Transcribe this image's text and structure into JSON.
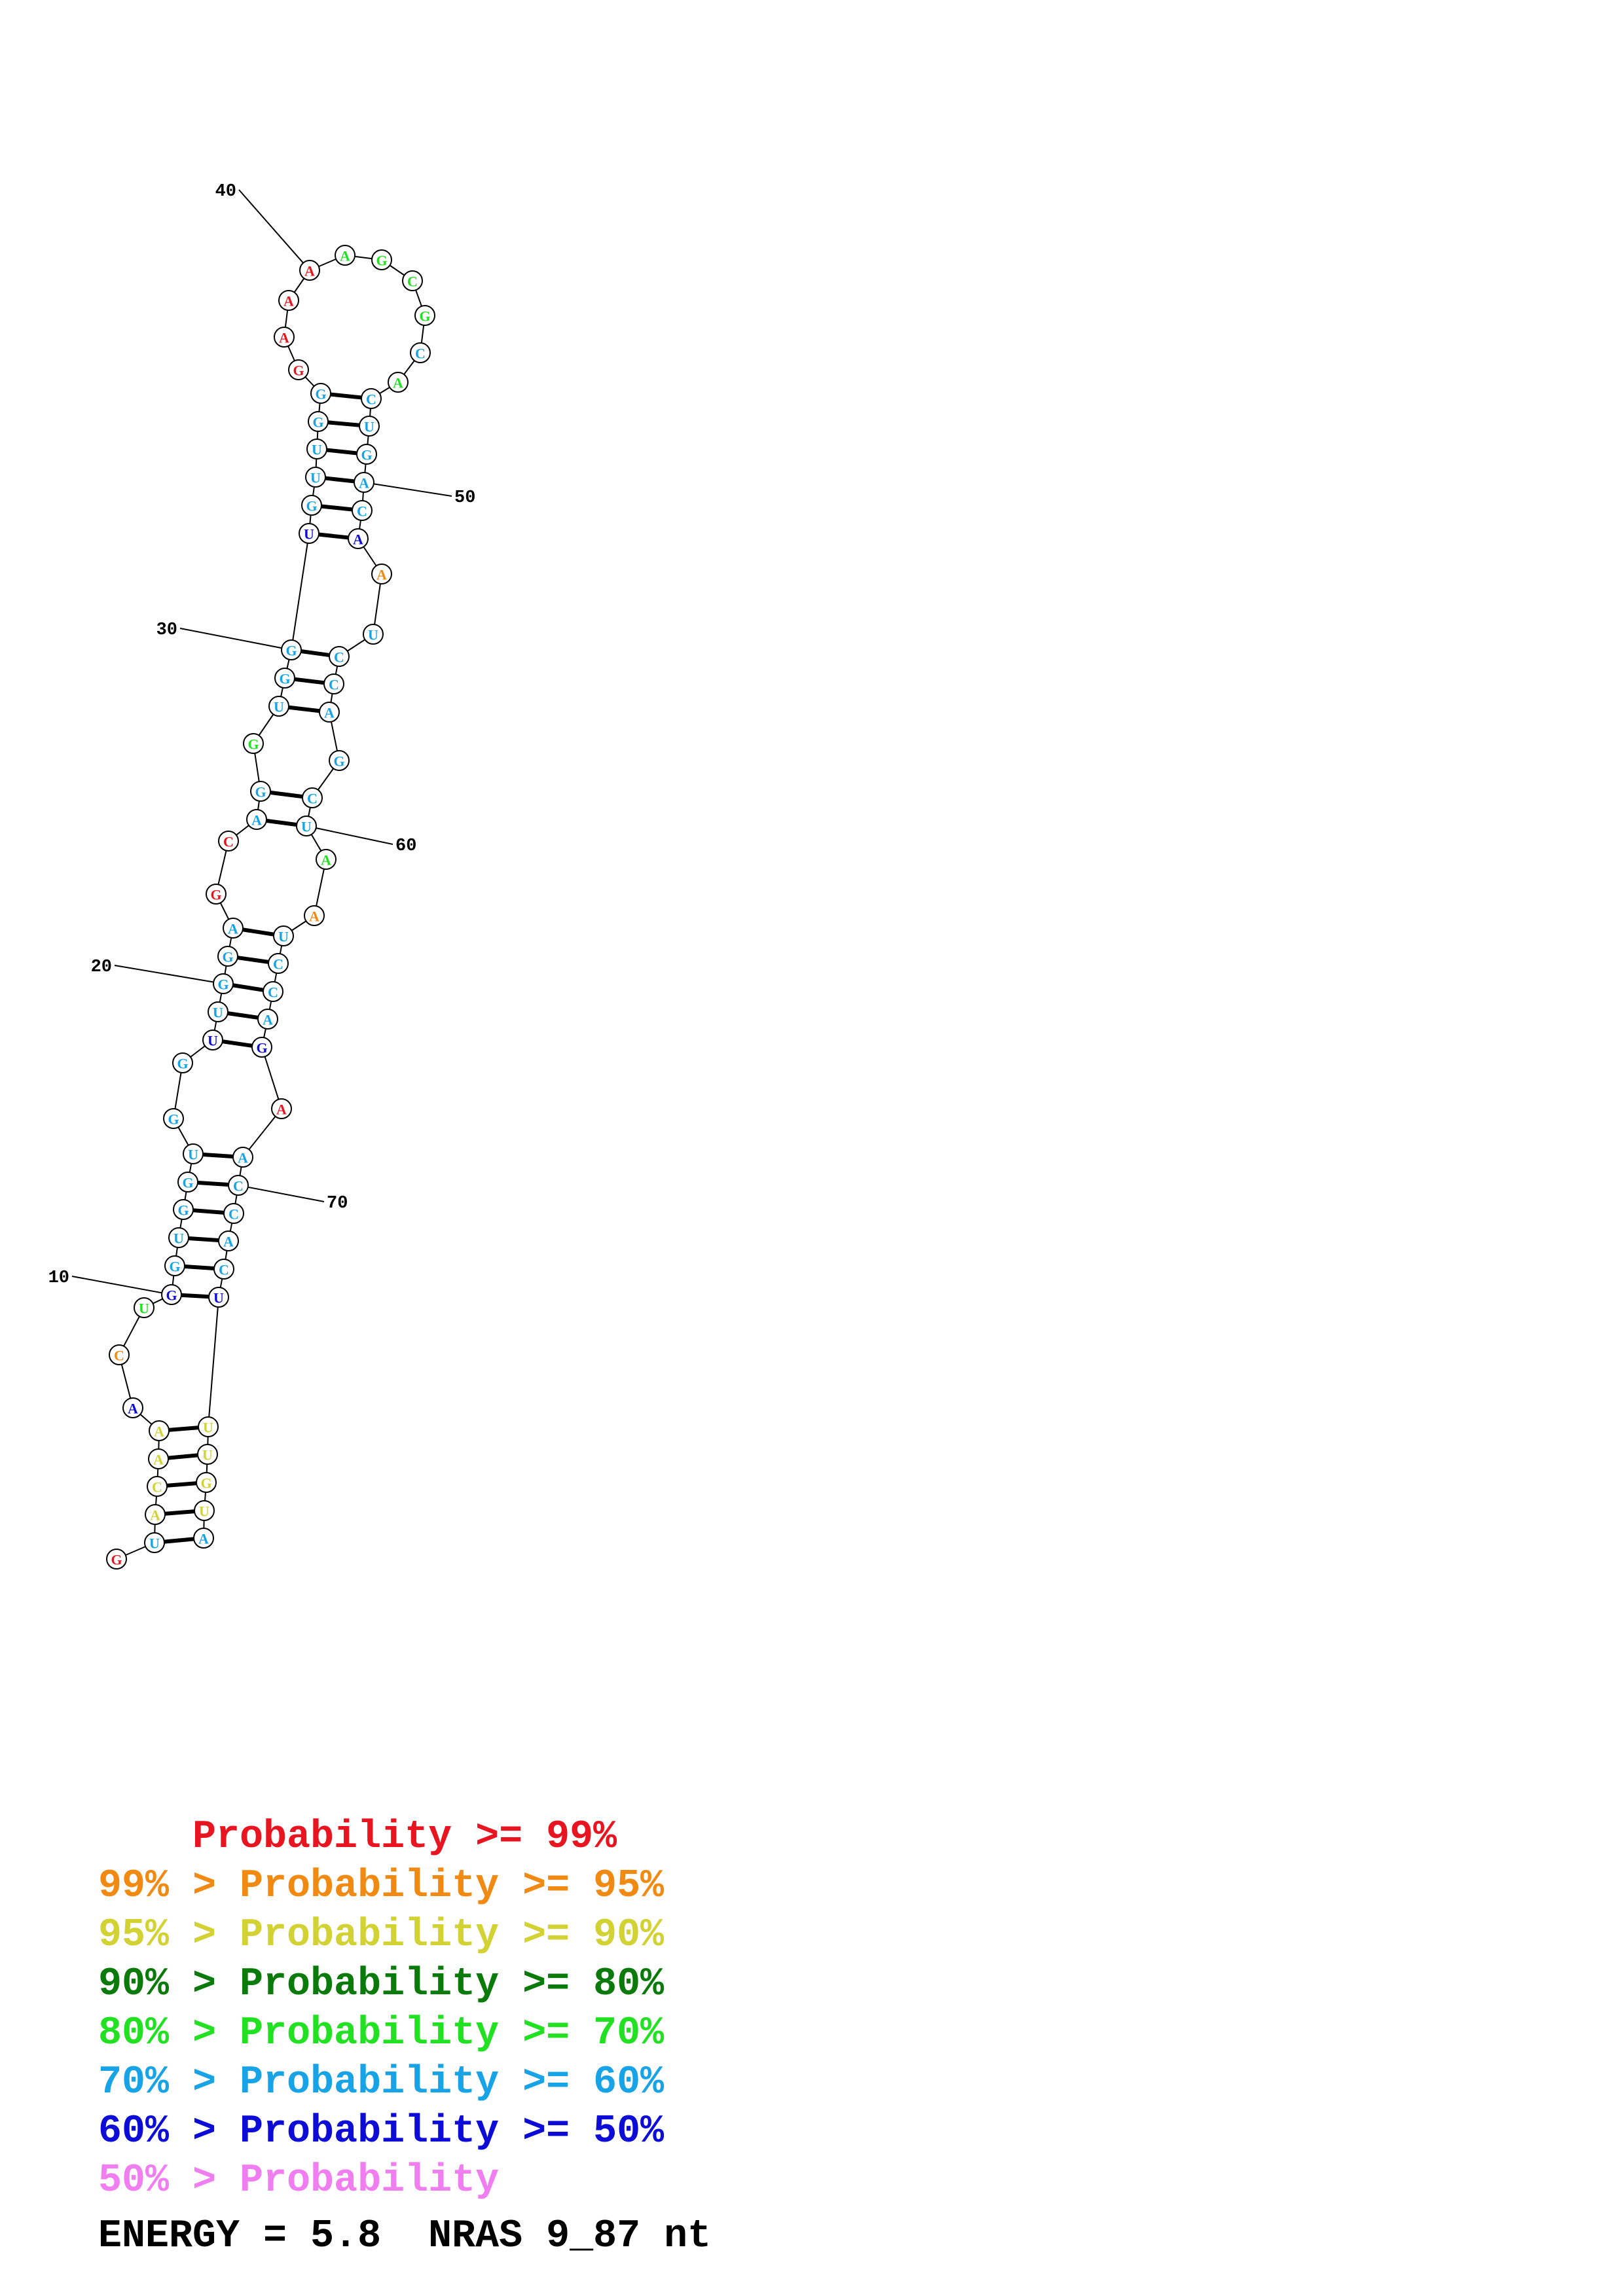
{
  "palette": {
    "red": "#e8141f",
    "orange": "#f08a13",
    "yellow": "#d2d235",
    "darkgreen": "#0a7a0a",
    "green": "#22e022",
    "cyan": "#17a3e6",
    "blue": "#0c0cd6",
    "pink": "#f07ef0"
  },
  "nucleotides": [
    {
      "index": 1,
      "base": "G",
      "color": "red"
    },
    {
      "index": 2,
      "base": "U",
      "color": "cyan"
    },
    {
      "index": 3,
      "base": "A",
      "color": "yellow"
    },
    {
      "index": 4,
      "base": "C",
      "color": "yellow"
    },
    {
      "index": 5,
      "base": "A",
      "color": "yellow"
    },
    {
      "index": 6,
      "base": "A",
      "color": "yellow"
    },
    {
      "index": 7,
      "base": "A",
      "color": "blue"
    },
    {
      "index": 8,
      "base": "C",
      "color": "orange"
    },
    {
      "index": 9,
      "base": "U",
      "color": "green"
    },
    {
      "index": 10,
      "base": "G",
      "color": "blue"
    },
    {
      "index": 11,
      "base": "G",
      "color": "cyan"
    },
    {
      "index": 12,
      "base": "U",
      "color": "cyan"
    },
    {
      "index": 13,
      "base": "G",
      "color": "cyan"
    },
    {
      "index": 14,
      "base": "G",
      "color": "cyan"
    },
    {
      "index": 15,
      "base": "U",
      "color": "cyan"
    },
    {
      "index": 16,
      "base": "G",
      "color": "cyan"
    },
    {
      "index": 17,
      "base": "G",
      "color": "cyan"
    },
    {
      "index": 18,
      "base": "U",
      "color": "blue"
    },
    {
      "index": 19,
      "base": "U",
      "color": "cyan"
    },
    {
      "index": 20,
      "base": "G",
      "color": "cyan"
    },
    {
      "index": 21,
      "base": "G",
      "color": "cyan"
    },
    {
      "index": 22,
      "base": "A",
      "color": "cyan"
    },
    {
      "index": 23,
      "base": "G",
      "color": "red"
    },
    {
      "index": 24,
      "base": "C",
      "color": "red"
    },
    {
      "index": 25,
      "base": "A",
      "color": "cyan"
    },
    {
      "index": 26,
      "base": "G",
      "color": "cyan"
    },
    {
      "index": 27,
      "base": "G",
      "color": "green"
    },
    {
      "index": 28,
      "base": "U",
      "color": "cyan"
    },
    {
      "index": 29,
      "base": "G",
      "color": "cyan"
    },
    {
      "index": 30,
      "base": "G",
      "color": "cyan"
    },
    {
      "index": 31,
      "base": "U",
      "color": "blue"
    },
    {
      "index": 32,
      "base": "G",
      "color": "cyan"
    },
    {
      "index": 33,
      "base": "U",
      "color": "cyan"
    },
    {
      "index": 34,
      "base": "U",
      "color": "cyan"
    },
    {
      "index": 35,
      "base": "G",
      "color": "cyan"
    },
    {
      "index": 36,
      "base": "G",
      "color": "cyan"
    },
    {
      "index": 37,
      "base": "G",
      "color": "red"
    },
    {
      "index": 38,
      "base": "A",
      "color": "red"
    },
    {
      "index": 39,
      "base": "A",
      "color": "red"
    },
    {
      "index": 40,
      "base": "A",
      "color": "red"
    },
    {
      "index": 41,
      "base": "A",
      "color": "green"
    },
    {
      "index": 42,
      "base": "G",
      "color": "green"
    },
    {
      "index": 43,
      "base": "C",
      "color": "green"
    },
    {
      "index": 44,
      "base": "G",
      "color": "green"
    },
    {
      "index": 45,
      "base": "C",
      "color": "cyan"
    },
    {
      "index": 46,
      "base": "A",
      "color": "green"
    },
    {
      "index": 47,
      "base": "C",
      "color": "cyan"
    },
    {
      "index": 48,
      "base": "U",
      "color": "cyan"
    },
    {
      "index": 49,
      "base": "G",
      "color": "cyan"
    },
    {
      "index": 50,
      "base": "A",
      "color": "cyan"
    },
    {
      "index": 51,
      "base": "C",
      "color": "cyan"
    },
    {
      "index": 52,
      "base": "A",
      "color": "blue"
    },
    {
      "index": 53,
      "base": "A",
      "color": "orange"
    },
    {
      "index": 54,
      "base": "U",
      "color": "cyan"
    },
    {
      "index": 55,
      "base": "C",
      "color": "cyan"
    },
    {
      "index": 56,
      "base": "C",
      "color": "cyan"
    },
    {
      "index": 57,
      "base": "A",
      "color": "cyan"
    },
    {
      "index": 58,
      "base": "G",
      "color": "cyan"
    },
    {
      "index": 59,
      "base": "C",
      "color": "cyan"
    },
    {
      "index": 60,
      "base": "U",
      "color": "cyan"
    },
    {
      "index": 61,
      "base": "A",
      "color": "green"
    },
    {
      "index": 62,
      "base": "A",
      "color": "orange"
    },
    {
      "index": 63,
      "base": "U",
      "color": "cyan"
    },
    {
      "index": 64,
      "base": "C",
      "color": "cyan"
    },
    {
      "index": 65,
      "base": "C",
      "color": "cyan"
    },
    {
      "index": 66,
      "base": "A",
      "color": "cyan"
    },
    {
      "index": 67,
      "base": "G",
      "color": "blue"
    },
    {
      "index": 68,
      "base": "A",
      "color": "red"
    },
    {
      "index": 69,
      "base": "A",
      "color": "cyan"
    },
    {
      "index": 70,
      "base": "C",
      "color": "cyan"
    },
    {
      "index": 71,
      "base": "C",
      "color": "cyan"
    },
    {
      "index": 72,
      "base": "A",
      "color": "cyan"
    },
    {
      "index": 73,
      "base": "C",
      "color": "cyan"
    },
    {
      "index": 74,
      "base": "U",
      "color": "blue"
    },
    {
      "index": 75,
      "base": "U",
      "color": "yellow"
    },
    {
      "index": 76,
      "base": "U",
      "color": "yellow"
    },
    {
      "index": 77,
      "base": "G",
      "color": "yellow"
    },
    {
      "index": 78,
      "base": "U",
      "color": "yellow"
    },
    {
      "index": 79,
      "base": "A",
      "color": "cyan"
    }
  ],
  "pairs": [
    [
      2,
      79
    ],
    [
      3,
      78
    ],
    [
      4,
      77
    ],
    [
      5,
      76
    ],
    [
      6,
      75
    ],
    [
      10,
      74
    ],
    [
      11,
      73
    ],
    [
      12,
      72
    ],
    [
      13,
      71
    ],
    [
      14,
      70
    ],
    [
      15,
      69
    ],
    [
      18,
      67
    ],
    [
      19,
      66
    ],
    [
      20,
      65
    ],
    [
      21,
      64
    ],
    [
      22,
      63
    ],
    [
      25,
      60
    ],
    [
      26,
      59
    ],
    [
      28,
      57
    ],
    [
      29,
      56
    ],
    [
      30,
      55
    ],
    [
      31,
      52
    ],
    [
      32,
      51
    ],
    [
      33,
      50
    ],
    [
      34,
      49
    ],
    [
      35,
      48
    ],
    [
      36,
      47
    ]
  ],
  "tick_labels": [
    {
      "index": 10,
      "label": "10"
    },
    {
      "index": 20,
      "label": "20"
    },
    {
      "index": 30,
      "label": "30"
    },
    {
      "index": 40,
      "label": "40"
    },
    {
      "index": 50,
      "label": "50"
    },
    {
      "index": 60,
      "label": "60"
    },
    {
      "index": 70,
      "label": "70"
    }
  ],
  "legend": [
    {
      "prefix": "    ",
      "middle": "Probability",
      "suffix": " >= 99%",
      "color": "red"
    },
    {
      "prefix": "99% > ",
      "middle": "Probability",
      "suffix": " >= 95%",
      "color": "orange"
    },
    {
      "prefix": "95% > ",
      "middle": "Probability",
      "suffix": " >= 90%",
      "color": "yellow"
    },
    {
      "prefix": "90% > ",
      "middle": "Probability",
      "suffix": " >= 80%",
      "color": "darkgreen"
    },
    {
      "prefix": "80% > ",
      "middle": "Probability",
      "suffix": " >= 70%",
      "color": "green"
    },
    {
      "prefix": "70% > ",
      "middle": "Probability",
      "suffix": " >= 60%",
      "color": "cyan"
    },
    {
      "prefix": "60% > ",
      "middle": "Probability",
      "suffix": " >= 50%",
      "color": "blue"
    },
    {
      "prefix": "50% > ",
      "middle": "Probability",
      "suffix": "",
      "color": "pink"
    }
  ],
  "energy_line": "ENERGY = 5.8  NRAS 9_87 nt"
}
